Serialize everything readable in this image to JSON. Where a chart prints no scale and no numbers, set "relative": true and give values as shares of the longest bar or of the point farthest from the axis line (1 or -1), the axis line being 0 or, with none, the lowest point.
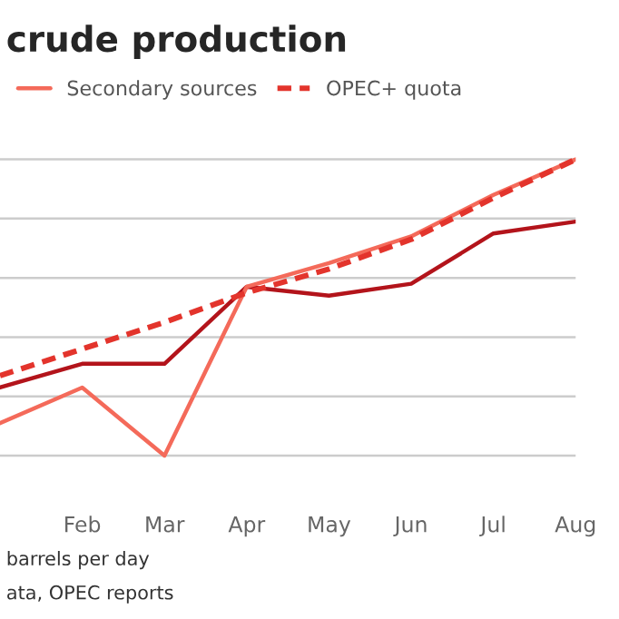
{
  "chart_data": {
    "type": "line",
    "title": "crude production",
    "categories": [
      null,
      "Feb",
      "Mar",
      "Apr",
      "May",
      "Jun",
      "Jul",
      "Aug"
    ],
    "relative": true,
    "series": [
      {
        "color": "#b3141b",
        "values": [
          0.23,
          0.31,
          0.31,
          0.57,
          0.54,
          0.58,
          0.75,
          0.79
        ]
      },
      {
        "name": "Secondary sources",
        "color": "#f46a5a",
        "values": [
          0.11,
          0.23,
          0.0,
          0.57,
          0.65,
          0.74,
          0.88,
          1.0
        ]
      },
      {
        "name": "OPEC+ quota",
        "color": "#e3342c",
        "line_style": "dashed",
        "values": [
          0.27,
          0.36,
          0.45,
          0.55,
          0.63,
          0.73,
          0.87,
          1.0
        ]
      }
    ],
    "grid": "y",
    "legend": "top left",
    "marker": "none",
    "annotations": [
      "barrels per day",
      "ata, OPEC reports"
    ]
  }
}
